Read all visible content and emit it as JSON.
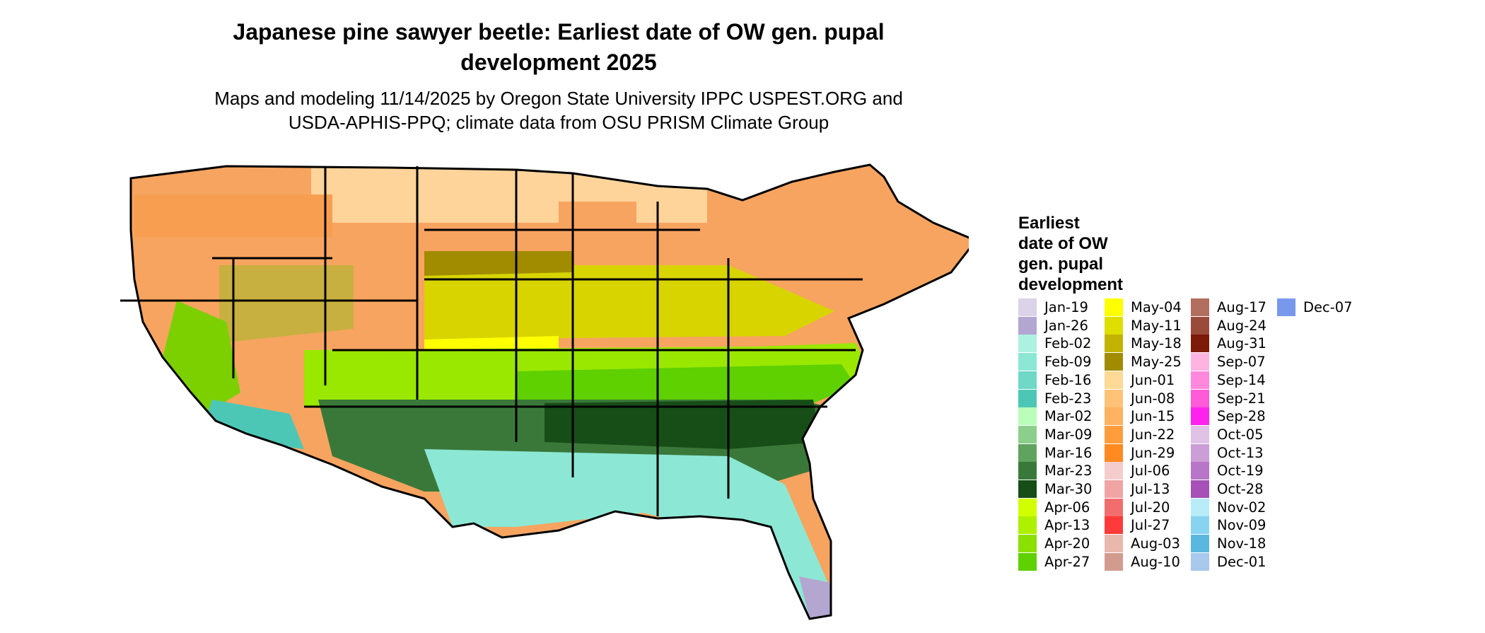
{
  "title_line1": "Japanese pine sawyer beetle: Earliest date of OW gen. pupal",
  "title_line2": "development 2025",
  "subtitle_line1": "Maps and modeling 11/14/2025 by Oregon State University IPPC USPEST.ORG and",
  "subtitle_line2": "USDA-APHIS-PPQ; climate data from OSU PRISM Climate Group",
  "legend": {
    "title_lines": [
      "Earliest",
      "date of OW",
      "gen. pupal",
      "development"
    ],
    "columns": [
      [
        {
          "label": "Jan-19",
          "color": "#dcd3e8"
        },
        {
          "label": "Jan-26",
          "color": "#b3a6d1"
        },
        {
          "label": "Feb-02",
          "color": "#adf2e0"
        },
        {
          "label": "Feb-09",
          "color": "#8ce8d5"
        },
        {
          "label": "Feb-16",
          "color": "#6fd8c7"
        },
        {
          "label": "Feb-23",
          "color": "#4dc7b5"
        },
        {
          "label": "Mar-02",
          "color": "#b9ffb9"
        },
        {
          "label": "Mar-09",
          "color": "#8ccf8c"
        },
        {
          "label": "Mar-16",
          "color": "#5fa35f"
        },
        {
          "label": "Mar-23",
          "color": "#3a783a"
        },
        {
          "label": "Mar-30",
          "color": "#174d17"
        },
        {
          "label": "Apr-06",
          "color": "#d2ff00"
        },
        {
          "label": "Apr-13",
          "color": "#aef000"
        },
        {
          "label": "Apr-20",
          "color": "#8be000"
        },
        {
          "label": "Apr-27",
          "color": "#5fd000"
        }
      ],
      [
        {
          "label": "May-04",
          "color": "#ffff00"
        },
        {
          "label": "May-11",
          "color": "#dede00"
        },
        {
          "label": "May-18",
          "color": "#c2b300"
        },
        {
          "label": "May-25",
          "color": "#a18c00"
        },
        {
          "label": "Jun-01",
          "color": "#ffd996"
        },
        {
          "label": "Jun-08",
          "color": "#ffc277"
        },
        {
          "label": "Jun-15",
          "color": "#ffb25f"
        },
        {
          "label": "Jun-22",
          "color": "#ff9d3d"
        },
        {
          "label": "Jun-29",
          "color": "#ff8a1f"
        },
        {
          "label": "Jul-06",
          "color": "#f5cccc"
        },
        {
          "label": "Jul-13",
          "color": "#f0a4a4"
        },
        {
          "label": "Jul-20",
          "color": "#f26e6e"
        },
        {
          "label": "Jul-27",
          "color": "#ff3a3a"
        },
        {
          "label": "Aug-03",
          "color": "#e8b8ad"
        },
        {
          "label": "Aug-10",
          "color": "#d29b8f"
        }
      ],
      [
        {
          "label": "Aug-17",
          "color": "#b26e5e"
        },
        {
          "label": "Aug-24",
          "color": "#9a4a3a"
        },
        {
          "label": "Aug-31",
          "color": "#7d1a0a"
        },
        {
          "label": "Sep-07",
          "color": "#ffb3e0"
        },
        {
          "label": "Sep-14",
          "color": "#ff88dd"
        },
        {
          "label": "Sep-21",
          "color": "#ff5ad8"
        },
        {
          "label": "Sep-28",
          "color": "#ff22ee"
        },
        {
          "label": "Oct-05",
          "color": "#e0c2e6"
        },
        {
          "label": "Oct-13",
          "color": "#cc9ed8"
        },
        {
          "label": "Oct-19",
          "color": "#b876c8"
        },
        {
          "label": "Oct-28",
          "color": "#a650b8"
        },
        {
          "label": "Nov-02",
          "color": "#b8ecf8"
        },
        {
          "label": "Nov-09",
          "color": "#88d4f0"
        },
        {
          "label": "Nov-18",
          "color": "#5ab8e0"
        },
        {
          "label": "Dec-01",
          "color": "#a8c8ec"
        }
      ],
      [
        {
          "label": "Dec-07",
          "color": "#7898ec"
        }
      ]
    ]
  }
}
